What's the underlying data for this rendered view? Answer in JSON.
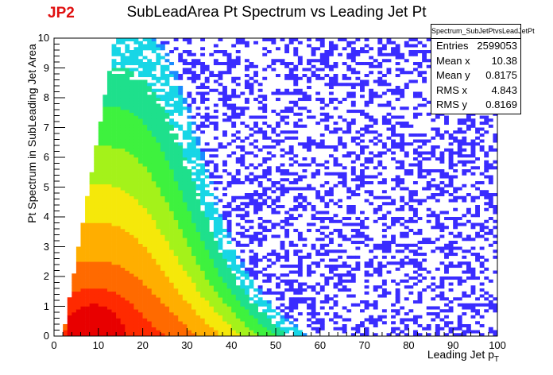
{
  "tag": "JP2",
  "chart_data": {
    "type": "heatmap",
    "title": "SubLeadArea Pt Spectrum vs Leading Jet Pt",
    "xlabel": "Leading Jet p",
    "xlabel_sub": "T",
    "ylabel": "Pt Spectrum in SubLeading Jet Area",
    "xlim": [
      0,
      100
    ],
    "ylim": [
      0,
      10
    ],
    "xticks": [
      "0",
      "10",
      "20",
      "30",
      "40",
      "50",
      "60",
      "70",
      "80",
      "90",
      "100"
    ],
    "yticks": [
      "0",
      "1",
      "2",
      "3",
      "4",
      "5",
      "6",
      "7",
      "8",
      "9",
      "10"
    ],
    "bins": {
      "nx": 100,
      "ny": 100
    },
    "colormap": [
      "#6a00ff",
      "#3a2cff",
      "#1a8cff",
      "#17d6e6",
      "#1ee08c",
      "#3ef23e",
      "#a4f21a",
      "#f5e80a",
      "#ffae00",
      "#ff6a00",
      "#ff2a00",
      "#e80000"
    ],
    "density_model": {
      "peak_x": 9,
      "peak_y": 0.4,
      "description_ridge": "triangular region; bulk from x 3-45, y 0-10, sparse tail to x 100"
    },
    "stats": {
      "name": "Spectrum_SubJetPtvsLeadJetPt",
      "rows": [
        {
          "label": "Entries",
          "value": "2599053"
        },
        {
          "label": "Mean x",
          "value": "10.38"
        },
        {
          "label": "Mean y",
          "value": "0.8175"
        },
        {
          "label": "RMS x",
          "value": "4.843"
        },
        {
          "label": "RMS y",
          "value": "0.8169"
        }
      ]
    }
  }
}
